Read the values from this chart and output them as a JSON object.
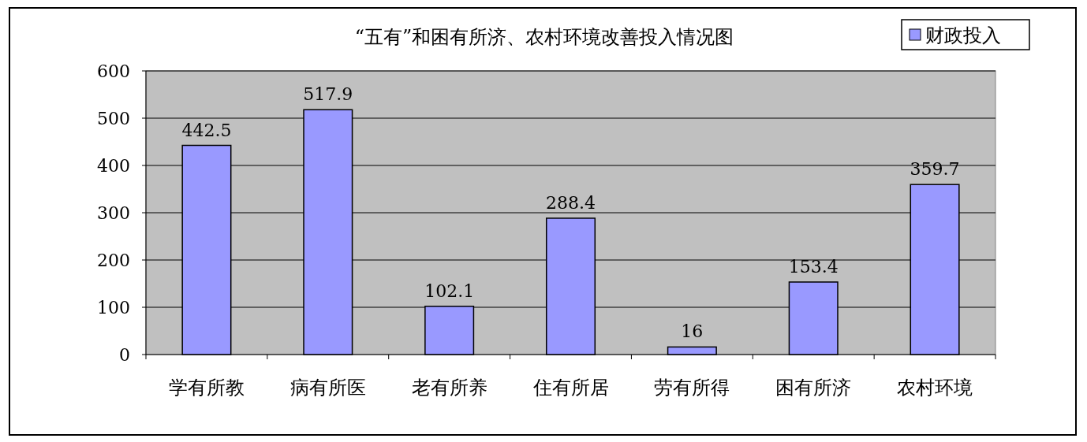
{
  "chart_data": {
    "type": "bar",
    "title": "“五有”和困有所济、农村环境改善投入情况图",
    "categories": [
      "学有所教",
      "病有所医",
      "老有所养",
      "住有所居",
      "劳有所得",
      "困有所济",
      "农村环境"
    ],
    "series": [
      {
        "name": "财政投入",
        "color": "#9999ff",
        "values": [
          442.5,
          517.9,
          102.1,
          288.4,
          16,
          153.4,
          359.7
        ]
      }
    ],
    "ylim": [
      0,
      600
    ],
    "yticks": [
      0,
      100,
      200,
      300,
      400,
      500,
      600
    ],
    "grid": "y",
    "legend": "top right",
    "data_labels": true
  }
}
